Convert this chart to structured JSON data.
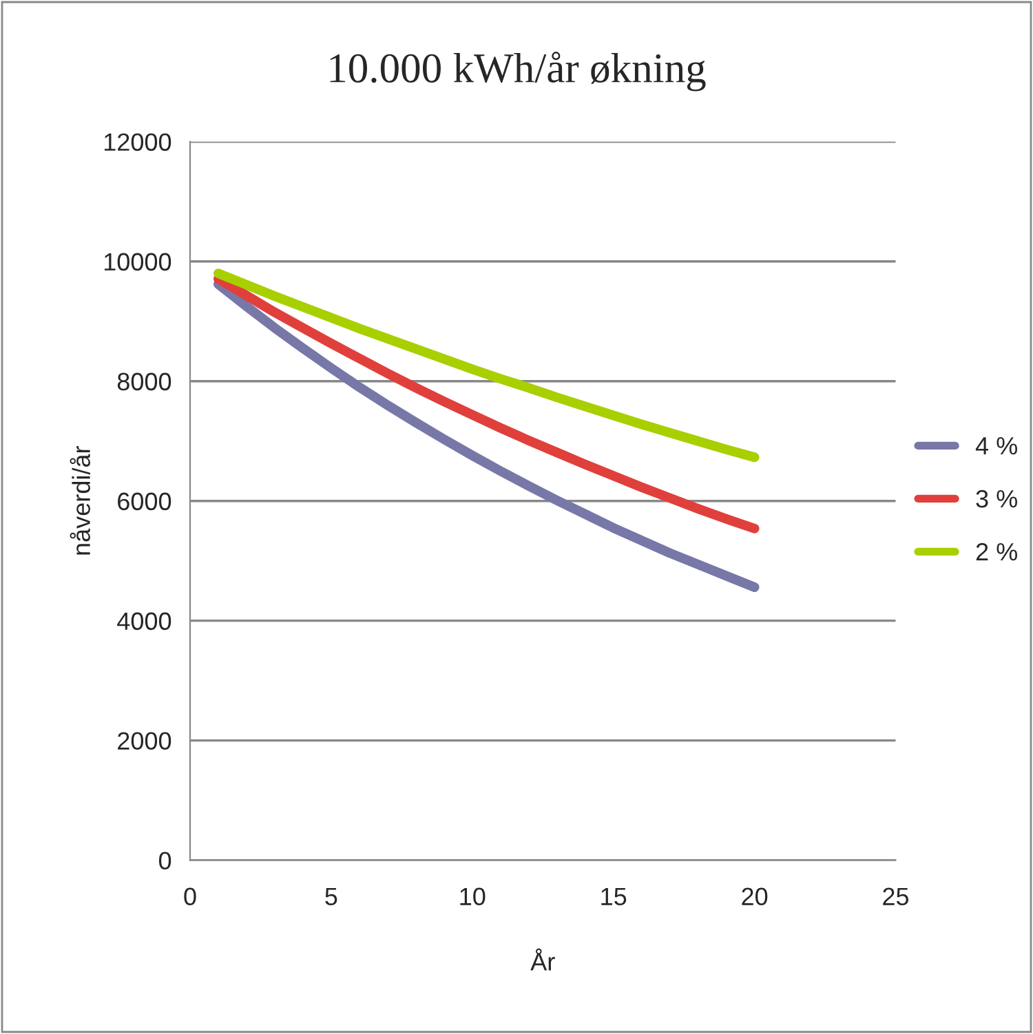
{
  "chart_data": {
    "type": "line",
    "title": "10.000 kWh/år økning",
    "xlabel": "År",
    "ylabel": "nåverdi/år",
    "x": [
      1,
      2,
      3,
      4,
      5,
      6,
      7,
      8,
      9,
      10,
      11,
      12,
      13,
      14,
      15,
      16,
      17,
      18,
      19,
      20
    ],
    "series": [
      {
        "name": "4 %",
        "color": "#7777a8",
        "values": [
          9620,
          9250,
          8890,
          8550,
          8220,
          7900,
          7600,
          7310,
          7030,
          6760,
          6500,
          6250,
          6010,
          5780,
          5550,
          5340,
          5130,
          4940,
          4750,
          4560
        ]
      },
      {
        "name": "3 %",
        "color": "#e0403c",
        "values": [
          9710,
          9430,
          9150,
          8890,
          8630,
          8380,
          8130,
          7890,
          7660,
          7440,
          7220,
          7010,
          6810,
          6610,
          6420,
          6230,
          6050,
          5870,
          5700,
          5540
        ]
      },
      {
        "name": "2 %",
        "color": "#a8cf00",
        "values": [
          9800,
          9610,
          9420,
          9240,
          9060,
          8880,
          8710,
          8540,
          8370,
          8200,
          8040,
          7890,
          7730,
          7580,
          7430,
          7280,
          7140,
          7000,
          6860,
          6730
        ]
      }
    ],
    "xlim": [
      0,
      25
    ],
    "xticks": [
      0,
      5,
      10,
      15,
      20,
      25
    ],
    "ylim": [
      0,
      12000
    ],
    "yticks": [
      0,
      2000,
      4000,
      6000,
      8000,
      10000,
      12000
    ],
    "grid": "y",
    "legend": "right",
    "marker": "none",
    "line_style": "solid"
  }
}
